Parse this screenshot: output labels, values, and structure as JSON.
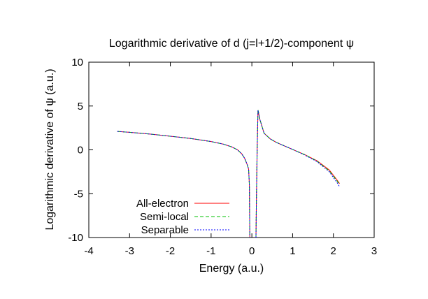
{
  "chart_data": {
    "type": "line",
    "title": "Logarithmic derivative of d (j=l+1/2)-component ψ",
    "xlabel": "Energy (a.u.)",
    "ylabel": "Logarithmic derivative of ψ (a.u.)",
    "xlim": [
      -4,
      3
    ],
    "ylim": [
      -10,
      10
    ],
    "xticks": [
      -4,
      -3,
      -2,
      -1,
      0,
      1,
      2,
      3
    ],
    "yticks": [
      -10,
      -5,
      0,
      5,
      10
    ],
    "xtick_labels": [
      "-4",
      "-3",
      "-2",
      "-1",
      "0",
      "1",
      "2",
      "3"
    ],
    "ytick_labels": [
      "-10",
      "-5",
      "0",
      "5",
      "10"
    ],
    "grid": false,
    "legend_position": "bottom-left",
    "series": [
      {
        "name": "All-electron",
        "color": "#ff0000",
        "dash": "solid",
        "segments": [
          {
            "x": [
              -3.3,
              -3.0,
              -2.5,
              -2.0,
              -1.5,
              -1.0,
              -0.7,
              -0.5,
              -0.35,
              -0.25,
              -0.18,
              -0.12,
              -0.08,
              -0.06,
              -0.05
            ],
            "y": [
              2.1,
              2.0,
              1.8,
              1.55,
              1.3,
              0.95,
              0.65,
              0.35,
              0.0,
              -0.45,
              -0.95,
              -1.6,
              -2.2,
              -4.0,
              -10.0
            ]
          },
          {
            "x": [
              0.1,
              0.11,
              0.13,
              0.15,
              0.2,
              0.3,
              0.45,
              0.6,
              0.8,
              1.0,
              1.3,
              1.6,
              1.9,
              2.1,
              2.15
            ],
            "y": [
              -10.0,
              -6.0,
              0.0,
              4.5,
              3.4,
              1.9,
              1.25,
              0.85,
              0.45,
              0.05,
              -0.55,
              -1.25,
              -2.3,
              -3.5,
              -3.85
            ]
          }
        ]
      },
      {
        "name": "Semi-local",
        "color": "#00c000",
        "dash": "5,3",
        "segments": [
          {
            "x": [
              -3.3,
              -3.0,
              -2.5,
              -2.0,
              -1.5,
              -1.0,
              -0.7,
              -0.5,
              -0.35,
              -0.25,
              -0.18,
              -0.12,
              -0.08,
              -0.06,
              -0.05
            ],
            "y": [
              2.1,
              2.0,
              1.8,
              1.55,
              1.3,
              0.95,
              0.65,
              0.35,
              0.0,
              -0.45,
              -0.95,
              -1.6,
              -2.2,
              -4.0,
              -10.0
            ]
          },
          {
            "x": [
              0.1,
              0.11,
              0.13,
              0.15,
              0.2,
              0.3,
              0.45,
              0.6,
              0.8,
              1.0,
              1.3,
              1.6,
              1.9,
              2.1,
              2.15
            ],
            "y": [
              -10.0,
              -6.0,
              0.0,
              4.6,
              3.45,
              1.9,
              1.25,
              0.85,
              0.45,
              0.05,
              -0.55,
              -1.3,
              -2.4,
              -3.6,
              -3.95
            ]
          }
        ]
      },
      {
        "name": "Separable",
        "color": "#0000ff",
        "dash": "2,2",
        "segments": [
          {
            "x": [
              -3.3,
              -3.0,
              -2.5,
              -2.0,
              -1.5,
              -1.0,
              -0.7,
              -0.5,
              -0.35,
              -0.25,
              -0.18,
              -0.12,
              -0.08,
              -0.06,
              -0.05
            ],
            "y": [
              2.1,
              2.0,
              1.8,
              1.55,
              1.3,
              0.95,
              0.65,
              0.35,
              0.0,
              -0.45,
              -0.95,
              -1.6,
              -2.2,
              -4.0,
              -10.0
            ]
          },
          {
            "x": [
              0.1,
              0.11,
              0.13,
              0.15,
              0.2,
              0.3,
              0.45,
              0.6,
              0.8,
              1.0,
              1.3,
              1.6,
              1.9,
              2.1,
              2.15
            ],
            "y": [
              -10.0,
              -6.0,
              0.0,
              4.5,
              3.4,
              1.9,
              1.25,
              0.85,
              0.45,
              0.05,
              -0.6,
              -1.35,
              -2.5,
              -3.8,
              -4.2
            ]
          }
        ]
      }
    ]
  }
}
